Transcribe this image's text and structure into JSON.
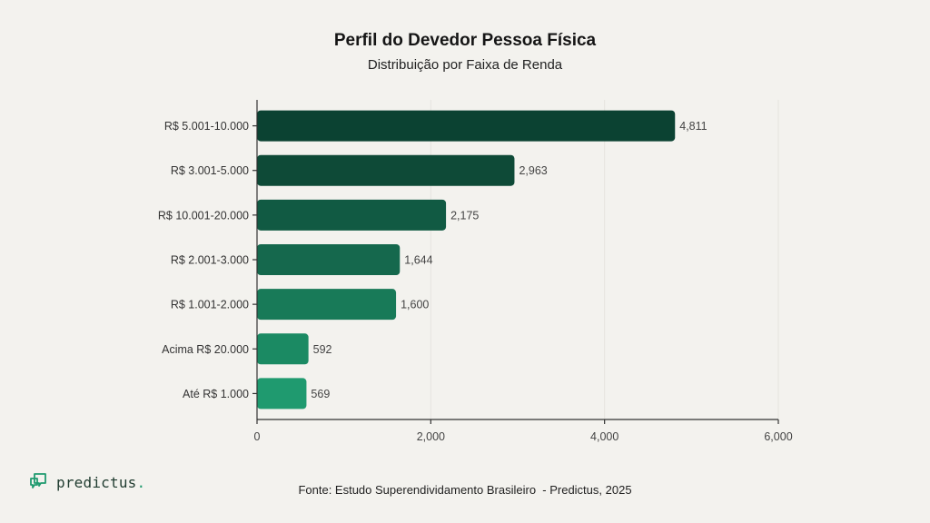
{
  "chart_data": {
    "type": "bar",
    "orientation": "horizontal",
    "title": "Perfil do Devedor Pessoa Física",
    "subtitle": "Distribuição por Faixa de Renda",
    "categories": [
      "R$ 5.001-10.000",
      "R$ 3.001-5.000",
      "R$ 10.001-20.000",
      "R$ 2.001-3.000",
      "R$ 1.001-2.000",
      "Acima R$ 20.000",
      "Até R$ 1.000"
    ],
    "values": [
      4811,
      2963,
      2175,
      1644,
      1600,
      592,
      569
    ],
    "value_labels": [
      "4,811",
      "2,963",
      "2,175",
      "1,644",
      "1,600",
      "592",
      "569"
    ],
    "xlim": [
      0,
      6000
    ],
    "xticks": [
      0,
      2000,
      4000,
      6000
    ],
    "xtick_labels": [
      "0",
      "2,000",
      "4,000",
      "6,000"
    ],
    "xlabel": "",
    "ylabel": "",
    "grid": true,
    "bar_colors": [
      "#0b4232",
      "#0e4a37",
      "#115a43",
      "#15684d",
      "#187a58",
      "#1b8a63",
      "#1f9a6f"
    ]
  },
  "footer": {
    "source": "Fonte: Estudo Superendividamento Brasileiro  - Predictus, 2025"
  },
  "logo": {
    "name": "predictus",
    "icon": "predictus-logo-icon",
    "color": "#1f9a6f"
  }
}
